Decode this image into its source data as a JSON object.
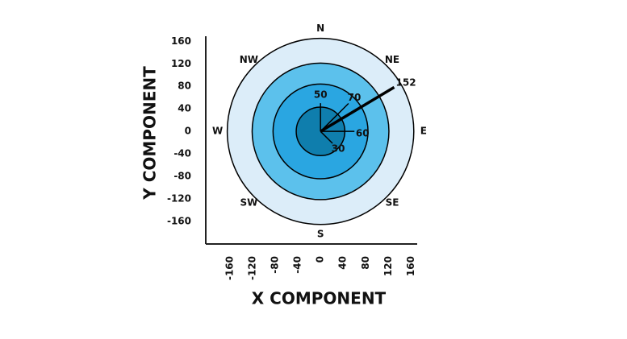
{
  "chart_data": {
    "type": "vector",
    "xlabel": "X COMPONENT",
    "ylabel": "Y COMPONENT",
    "xlim": [
      -203,
      171
    ],
    "ylim": [
      -200,
      169
    ],
    "xticks": [
      -160,
      -120,
      -80,
      -40,
      0,
      40,
      80,
      120,
      160
    ],
    "yticks": [
      -160,
      -120,
      -80,
      -40,
      0,
      40,
      80,
      120,
      160
    ],
    "rings": {
      "radii": [
        165,
        121,
        84,
        43
      ],
      "colors": [
        "#dcedf9",
        "#5cc1ec",
        "#2aa6e1",
        "#0f7ead"
      ]
    },
    "compass": [
      "N",
      "NE",
      "E",
      "SE",
      "S",
      "SW",
      "W",
      "NW"
    ],
    "vectors": {
      "magnitudes": [
        152,
        70,
        50,
        60,
        30
      ],
      "angles": [
        31,
        45,
        90,
        0,
        -45
      ]
    },
    "color": "#000000"
  }
}
